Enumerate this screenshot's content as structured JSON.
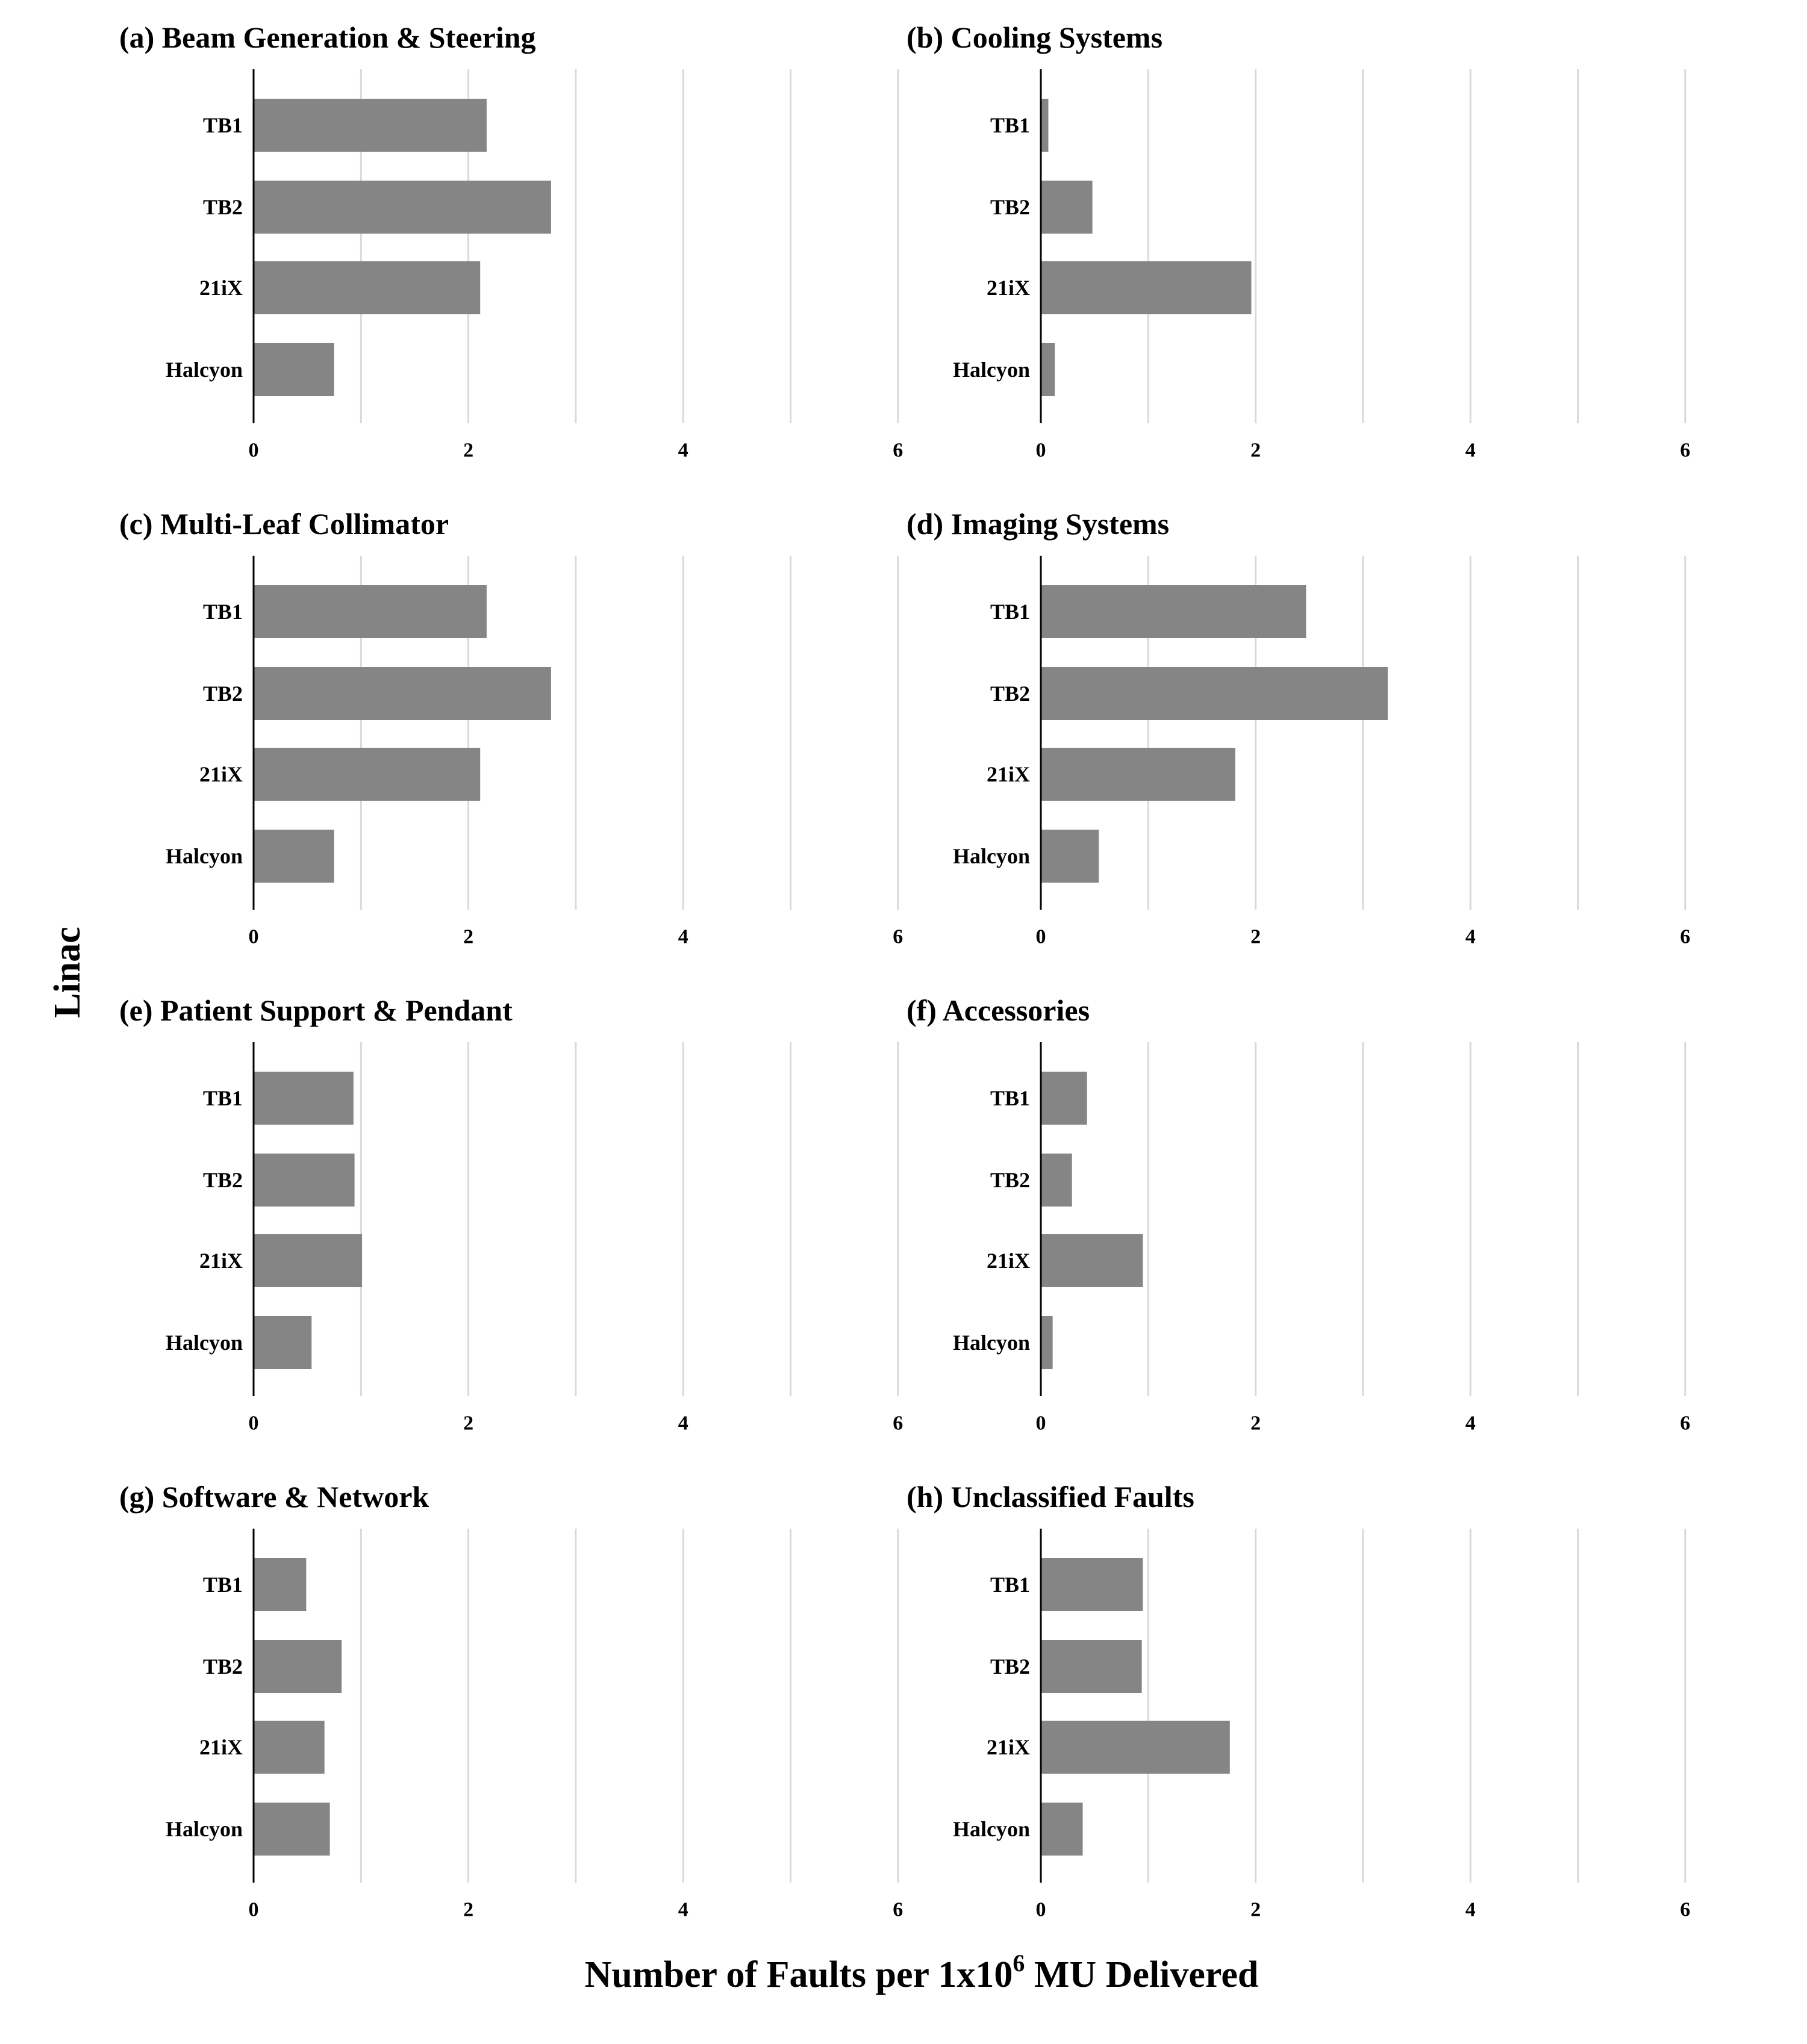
{
  "figure": {
    "ylabel": "Linac",
    "xlabel_parts": {
      "before": "Number of Faults per 1x10",
      "superscript": "6",
      "after": " MU Delivered"
    }
  },
  "chart_data": [
    {
      "type": "bar",
      "orientation": "horizontal",
      "title": "(a) Beam Generation & Steering",
      "categories": [
        "TB1",
        "TB2",
        "21iX",
        "Halcyon"
      ],
      "values": [
        2.17,
        2.77,
        2.11,
        0.75
      ],
      "xlim": [
        0,
        6
      ],
      "xticks": [
        0,
        2,
        4,
        6
      ],
      "grid": true,
      "bar_color": "#858585"
    },
    {
      "type": "bar",
      "orientation": "horizontal",
      "title": "(b) Cooling Systems",
      "categories": [
        "TB1",
        "TB2",
        "21iX",
        "Halcyon"
      ],
      "values": [
        0.07,
        0.48,
        1.96,
        0.13
      ],
      "xlim": [
        0,
        6
      ],
      "xticks": [
        0,
        2,
        4,
        6
      ],
      "grid": true,
      "bar_color": "#858585"
    },
    {
      "type": "bar",
      "orientation": "horizontal",
      "title": "(c) Multi-Leaf Collimator",
      "categories": [
        "TB1",
        "TB2",
        "21iX",
        "Halcyon"
      ],
      "values": [
        2.17,
        2.77,
        2.11,
        0.75
      ],
      "xlim": [
        0,
        6
      ],
      "xticks": [
        0,
        2,
        4,
        6
      ],
      "grid": true,
      "bar_color": "#858585"
    },
    {
      "type": "bar",
      "orientation": "horizontal",
      "title": "(d) Imaging Systems",
      "categories": [
        "TB1",
        "TB2",
        "21iX",
        "Halcyon"
      ],
      "values": [
        2.47,
        3.23,
        1.81,
        0.54
      ],
      "xlim": [
        0,
        6
      ],
      "xticks": [
        0,
        2,
        4,
        6
      ],
      "grid": true,
      "bar_color": "#858585"
    },
    {
      "type": "bar",
      "orientation": "horizontal",
      "title": "(e) Patient Support & Pendant",
      "categories": [
        "TB1",
        "TB2",
        "21iX",
        "Halcyon"
      ],
      "values": [
        0.93,
        0.94,
        1.01,
        0.54
      ],
      "xlim": [
        0,
        6
      ],
      "xticks": [
        0,
        2,
        4,
        6
      ],
      "grid": true,
      "bar_color": "#858585"
    },
    {
      "type": "bar",
      "orientation": "horizontal",
      "title": "(f) Accessories",
      "categories": [
        "TB1",
        "TB2",
        "21iX",
        "Halcyon"
      ],
      "values": [
        0.43,
        0.29,
        0.95,
        0.11
      ],
      "xlim": [
        0,
        6
      ],
      "xticks": [
        0,
        2,
        4,
        6
      ],
      "grid": true,
      "bar_color": "#858585"
    },
    {
      "type": "bar",
      "orientation": "horizontal",
      "title": "(g) Software & Network",
      "categories": [
        "TB1",
        "TB2",
        "21iX",
        "Halcyon"
      ],
      "values": [
        0.49,
        0.82,
        0.66,
        0.71
      ],
      "xlim": [
        0,
        6
      ],
      "xticks": [
        0,
        2,
        4,
        6
      ],
      "grid": true,
      "bar_color": "#858585"
    },
    {
      "type": "bar",
      "orientation": "horizontal",
      "title": "(h) Unclassified Faults",
      "categories": [
        "TB1",
        "TB2",
        "21iX",
        "Halcyon"
      ],
      "values": [
        0.95,
        0.94,
        1.76,
        0.39
      ],
      "xlim": [
        0,
        6
      ],
      "xticks": [
        0,
        2,
        4,
        6
      ],
      "grid": true,
      "bar_color": "#858585"
    }
  ]
}
